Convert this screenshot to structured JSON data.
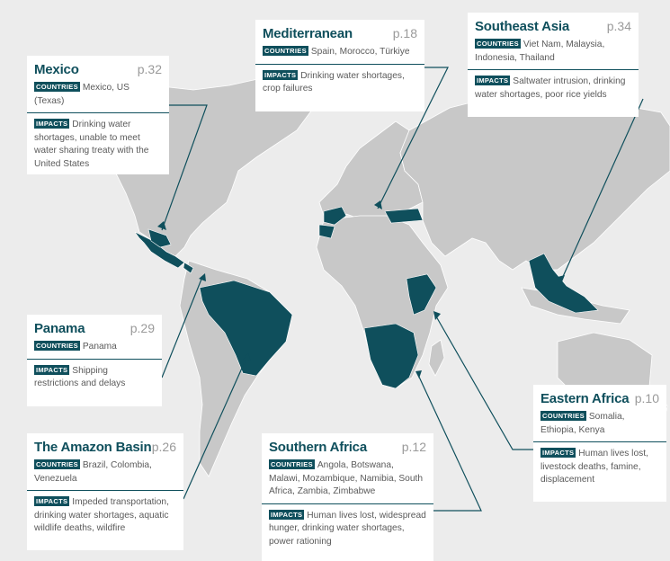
{
  "colors": {
    "sea": "#ececec",
    "land": "#c8c8c8",
    "drought": "#0f4f5c",
    "accent": "#0f4f5c",
    "card": "#ffffff"
  },
  "tags": {
    "countries": "COUNTRIES",
    "impacts": "IMPACTS"
  },
  "regions": [
    {
      "id": "mexico",
      "title": "Mexico",
      "page": "p.32",
      "countries": "Mexico, US (Texas)",
      "impacts": "Drinking water shortages, unable to meet water sharing treaty with the United States"
    },
    {
      "id": "mediterranean",
      "title": "Mediterranean",
      "page": "p.18",
      "countries": "Spain, Morocco, Türkiye",
      "impacts": "Drinking water shortages, crop failures"
    },
    {
      "id": "southeast-asia",
      "title": "Southeast Asia",
      "page": "p.34",
      "countries": "Viet Nam, Malaysia, Indonesia, Thailand",
      "impacts": "Saltwater intrusion, drinking water shortages, poor rice yields"
    },
    {
      "id": "panama",
      "title": "Panama",
      "page": "p.29",
      "countries": "Panama",
      "impacts": "Shipping restrictions and delays"
    },
    {
      "id": "amazon",
      "title": "The Amazon Basin",
      "page": "p.26",
      "countries": "Brazil, Colombia, Venezuela",
      "impacts": "Impeded transportation, drinking water shortages, aquatic wildlife deaths, wildfire"
    },
    {
      "id": "southern-africa",
      "title": "Southern Africa",
      "page": "p.12",
      "countries": "Angola, Botswana, Malawi, Mozambique, Namibia, South Africa, Zambia, Zimbabwe",
      "impacts": "Human lives lost, widespread hunger, drinking water shortages, power rationing"
    },
    {
      "id": "eastern-africa",
      "title": "Eastern Africa",
      "page": "p.10",
      "countries": "Somalia, Ethiopia, Kenya",
      "impacts": "Human lives lost, livestock deaths, famine, displacement"
    }
  ]
}
